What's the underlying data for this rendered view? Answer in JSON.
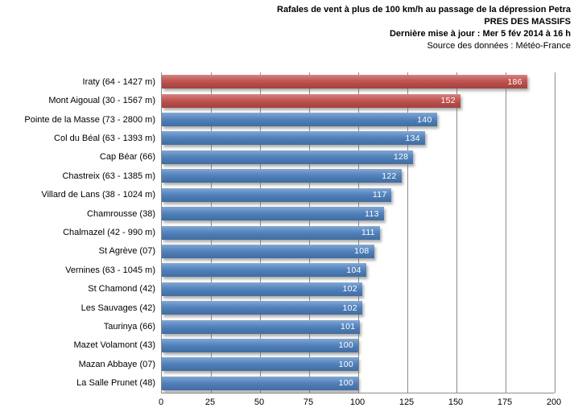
{
  "header": {
    "line1": "Rafales de vent à plus de 100 km/h au passage de la dépression Petra",
    "line2": "PRES DES MASSIFS",
    "line3": "Dernière mise à jour : Mer 5 fév 2014 à 16 h",
    "line4": "Source des données : Météo-France"
  },
  "chart_data": {
    "type": "bar",
    "orientation": "horizontal",
    "title": "Rafales de vent à plus de 100 km/h au passage de la dépression Petra",
    "subtitle": "PRES DES MASSIFS",
    "update_text": "Dernière mise à jour : Mer 5 fév 2014 à 16 h",
    "source_text": "Source des données : Météo-France",
    "unit": "km/h",
    "xlim": [
      0,
      200
    ],
    "x_ticks": [
      0,
      25,
      50,
      75,
      100,
      125,
      150,
      175,
      200
    ],
    "grid": "vertical",
    "legend": "none",
    "default_color": "#4f81bd",
    "highlight_color": "#c0504d",
    "gridline_color": "#8c8c8c",
    "value_label_color": "#ffffff",
    "categories": [
      "Iraty (64 - 1427 m)",
      "Mont Aigoual (30 - 1567 m)",
      "Pointe de la Masse (73 - 2800 m)",
      "Col du Béal (63 - 1393 m)",
      "Cap Béar (66)",
      "Chastreix (63 - 1385 m)",
      "Villard de Lans (38 - 1024 m)",
      "Chamrousse (38)",
      "Chalmazel (42 - 990 m)",
      "St Agrève (07)",
      "Vernines (63 - 1045 m)",
      "St Chamond (42)",
      "Les Sauvages (42)",
      "Taurinya (66)",
      "Mazet Volamont (43)",
      "Mazan Abbaye (07)",
      "La Salle Prunet (48)"
    ],
    "values": [
      186,
      152,
      140,
      134,
      128,
      122,
      117,
      113,
      111,
      108,
      104,
      102,
      102,
      101,
      100,
      100,
      100
    ],
    "bar_colors": [
      "#c0504d",
      "#c0504d",
      "#4f81bd",
      "#4f81bd",
      "#4f81bd",
      "#4f81bd",
      "#4f81bd",
      "#4f81bd",
      "#4f81bd",
      "#4f81bd",
      "#4f81bd",
      "#4f81bd",
      "#4f81bd",
      "#4f81bd",
      "#4f81bd",
      "#4f81bd",
      "#4f81bd"
    ]
  }
}
